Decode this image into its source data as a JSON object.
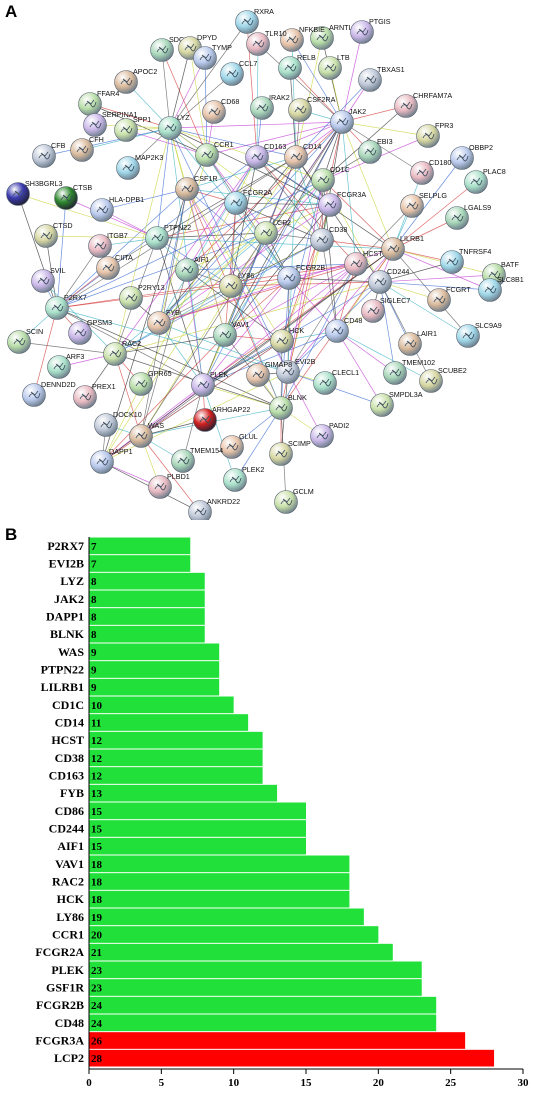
{
  "panels": {
    "a_label": "A",
    "b_label": "B"
  },
  "network": {
    "nodes": [
      "RXRA",
      "ARNTL",
      "PTGIS",
      "NFKBIE",
      "SDC3",
      "DPYD",
      "TYMP",
      "TLR10",
      "RELB",
      "LTB",
      "TBXAS1",
      "APOC2",
      "CCL7",
      "FFAR4",
      "SERPINA1",
      "CD68",
      "IRAK2",
      "CSF2RA",
      "JAK2",
      "CHRFAM7A",
      "LYZ",
      "SPP1",
      "CFB",
      "CFH",
      "MAP2K3",
      "CCR1",
      "CD163",
      "CD14",
      "EBI3",
      "FPR3",
      "OBBP2",
      "CD180",
      "PLAC8",
      "SH3BGRL3",
      "CTSB",
      "CSF1R",
      "FCGR2A",
      "CD1C",
      "FCGR3A",
      "SELPLG",
      "LGALS9",
      "CTSD",
      "HLA-DPB1",
      "ITGB7",
      "PTPN22",
      "LCP2",
      "CD38",
      "LILRB1",
      "TNFRSF4",
      "BATF",
      "SVIL",
      "CIITA",
      "AIF1",
      "LY86",
      "FCGR2B",
      "HCST",
      "P2RX7",
      "P2RY13",
      "CD244",
      "FCGRT",
      "SLC8B1",
      "SCIN",
      "GPSM3",
      "FYB",
      "VAV1",
      "HCK",
      "CD48",
      "SIGLEC7",
      "ARF3",
      "RAC2",
      "EVI2B",
      "LAIR1",
      "SLC9A9",
      "GPR65",
      "PLEK",
      "GIMAP8",
      "TMEM102",
      "SCUBE2",
      "DENND2D",
      "PREX1",
      "CLECL1",
      "SMPDL3A",
      "DOCK10",
      "WAS",
      "ARHGAP22",
      "BLNK",
      "PADI2",
      "GLUL",
      "TMEM154",
      "SCIMP",
      "DAPP1",
      "PLBD1",
      "PLEK2",
      "GCLM",
      "ANKRD22"
    ]
  },
  "chart_data": {
    "type": "bar",
    "orientation": "horizontal",
    "categories": [
      "P2RX7",
      "EVI2B",
      "LYZ",
      "JAK2",
      "DAPP1",
      "BLNK",
      "WAS",
      "PTPN22",
      "LILRB1",
      "CD1C",
      "CD14",
      "HCST",
      "CD38",
      "CD163",
      "FYB",
      "CD86",
      "CD244",
      "AIF1",
      "VAV1",
      "RAC2",
      "HCK",
      "LY86",
      "CCR1",
      "FCGR2A",
      "PLEK",
      "GSF1R",
      "FCGR2B",
      "CD48",
      "FCGR3A",
      "LCP2"
    ],
    "values": [
      7,
      7,
      8,
      8,
      8,
      8,
      9,
      9,
      9,
      10,
      11,
      12,
      12,
      12,
      13,
      15,
      15,
      15,
      18,
      18,
      18,
      19,
      20,
      21,
      23,
      23,
      24,
      24,
      26,
      28
    ],
    "value_labels": [
      "7",
      "7",
      "8",
      "8",
      "8",
      "8",
      "9",
      "9",
      "9",
      "10",
      "11",
      "12",
      "12",
      "12",
      "13",
      "15",
      "15",
      "15",
      "18",
      "18",
      "18",
      "19",
      "20",
      "21",
      "23",
      "23",
      "24",
      "24",
      "26",
      "28"
    ],
    "highlighted": [
      "FCGR3A",
      "LCP2"
    ],
    "colors": {
      "default": "#22e03a",
      "highlight": "#ff0000"
    },
    "xlim": [
      0,
      30
    ],
    "xticks": [
      "0",
      "5",
      "10",
      "15",
      "20",
      "25",
      "30"
    ]
  }
}
